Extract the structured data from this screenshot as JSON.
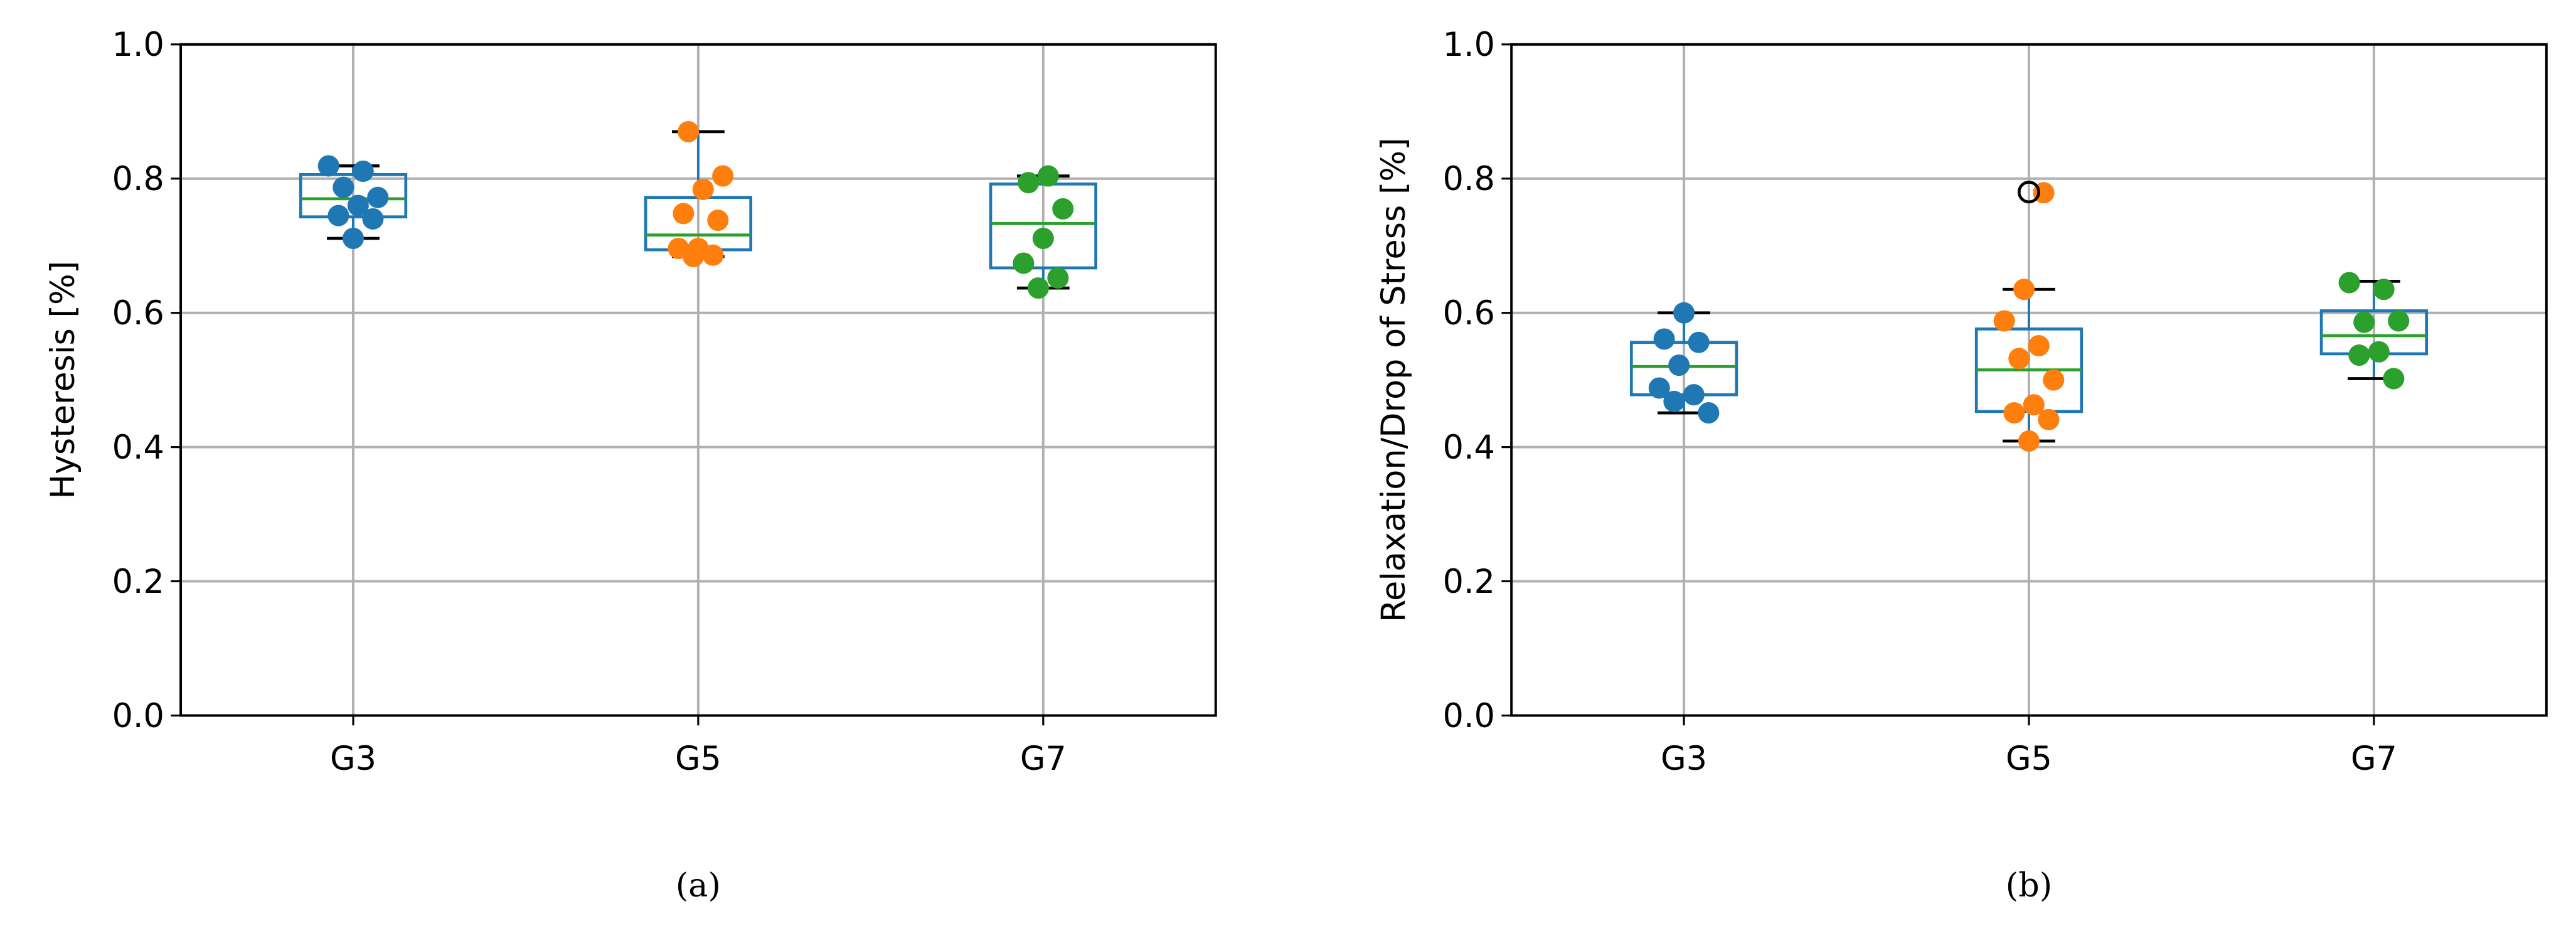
{
  "chart_data": [
    {
      "type": "box",
      "ylabel": "Hysteresis [%]",
      "caption": "(a)",
      "categories": [
        "G3",
        "G5",
        "G7"
      ],
      "ylim": [
        0,
        1
      ],
      "yticks": [
        {
          "value": 0,
          "label": "0.0"
        },
        {
          "value": 0.2,
          "label": "0.2"
        },
        {
          "value": 0.4,
          "label": "0.4"
        },
        {
          "value": 0.6,
          "label": "0.6"
        },
        {
          "value": 0.8,
          "label": "0.8"
        },
        {
          "value": 1,
          "label": "1.0"
        }
      ],
      "grid": true,
      "box_color": "#1f77b4",
      "median_color": "#2ca02c",
      "boxes": [
        {
          "whislo": 0.711,
          "q1": 0.743,
          "med": 0.77,
          "q3": 0.806,
          "whishi": 0.819,
          "fliers": []
        },
        {
          "whislo": 0.684,
          "q1": 0.694,
          "med": 0.716,
          "q3": 0.772,
          "whishi": 0.87,
          "fliers": []
        },
        {
          "whislo": 0.637,
          "q1": 0.667,
          "med": 0.733,
          "q3": 0.792,
          "whishi": 0.804,
          "fliers": []
        }
      ],
      "points": [
        {
          "color": "#1f77b4",
          "values": [
            0.819,
            0.811,
            0.787,
            0.772,
            0.76,
            0.745,
            0.74,
            0.711
          ]
        },
        {
          "color": "#ff7f0e",
          "values": [
            0.87,
            0.804,
            0.784,
            0.748,
            0.738,
            0.696,
            0.696,
            0.686,
            0.684
          ]
        },
        {
          "color": "#2ca02c",
          "values": [
            0.804,
            0.794,
            0.755,
            0.711,
            0.674,
            0.652,
            0.637
          ]
        }
      ]
    },
    {
      "type": "box",
      "ylabel": "Relaxation/Drop of Stress [%]",
      "caption": "(b)",
      "categories": [
        "G3",
        "G5",
        "G7"
      ],
      "ylim": [
        0,
        1
      ],
      "yticks": [
        {
          "value": 0,
          "label": "0.0"
        },
        {
          "value": 0.2,
          "label": "0.2"
        },
        {
          "value": 0.4,
          "label": "0.4"
        },
        {
          "value": 0.6,
          "label": "0.6"
        },
        {
          "value": 0.8,
          "label": "0.8"
        },
        {
          "value": 1,
          "label": "1.0"
        }
      ],
      "grid": true,
      "box_color": "#1f77b4",
      "median_color": "#2ca02c",
      "boxes": [
        {
          "whislo": 0.451,
          "q1": 0.478,
          "med": 0.52,
          "q3": 0.556,
          "whishi": 0.6,
          "fliers": []
        },
        {
          "whislo": 0.409,
          "q1": 0.453,
          "med": 0.515,
          "q3": 0.576,
          "whishi": 0.635,
          "fliers": [
            0.78
          ]
        },
        {
          "whislo": 0.502,
          "q1": 0.539,
          "med": 0.566,
          "q3": 0.603,
          "whishi": 0.647,
          "fliers": []
        }
      ],
      "points": [
        {
          "color": "#1f77b4",
          "values": [
            0.6,
            0.561,
            0.556,
            0.522,
            0.488,
            0.478,
            0.468,
            0.451
          ]
        },
        {
          "color": "#ff7f0e",
          "values": [
            0.779,
            0.635,
            0.588,
            0.551,
            0.532,
            0.5,
            0.463,
            0.451,
            0.441,
            0.409
          ]
        },
        {
          "color": "#2ca02c",
          "values": [
            0.645,
            0.635,
            0.586,
            0.588,
            0.542,
            0.537,
            0.502
          ]
        }
      ]
    }
  ]
}
